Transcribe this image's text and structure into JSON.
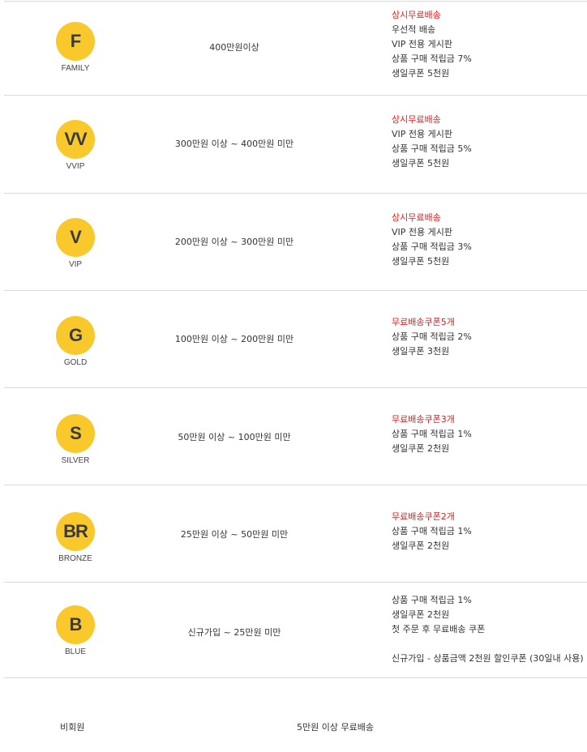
{
  "tiers": [
    {
      "badge": "F",
      "name": "FAMILY",
      "condition": "400만원이상",
      "highlight": "상시무료배송",
      "benefits": [
        "우선적 배송",
        "VIP 전용 게시판",
        "상품 구매 적립금 7%",
        "생일쿠폰 5천원"
      ],
      "note": ""
    },
    {
      "badge": "VV",
      "name": "VVIP",
      "condition": "300만원 이상 ~ 400만원 미만",
      "highlight": "상시무료배송",
      "benefits": [
        "VIP 전용 게시판",
        "상품 구매 적립금 5%",
        "생일쿠폰 5천원"
      ],
      "note": ""
    },
    {
      "badge": "V",
      "name": "VIP",
      "condition": "200만원 이상 ~ 300만원 미만",
      "highlight": "상시무료배송",
      "benefits": [
        "VIP 전용 게시판",
        "상품 구매 적립금 3%",
        "생일쿠폰 5천원"
      ],
      "note": ""
    },
    {
      "badge": "G",
      "name": "GOLD",
      "condition": "100만원 이상 ~ 200만원 미만",
      "highlight": "무료배송쿠폰5개",
      "benefits": [
        "상품 구매 적립금 2%",
        "생일쿠폰 3천원"
      ],
      "note": ""
    },
    {
      "badge": "S",
      "name": "SILVER",
      "condition": "50만원 이상 ~ 100만원 미만",
      "highlight": "무료배송쿠폰3개",
      "benefits": [
        "상품 구매 적립금 1%",
        "생일쿠폰 2천원"
      ],
      "note": ""
    },
    {
      "badge": "BR",
      "name": "BRONZE",
      "condition": "25만원 이상 ~ 50만원 미만",
      "highlight": "무료배송쿠폰2개",
      "benefits": [
        "상품 구매 적립금 1%",
        "생일쿠폰 2천원"
      ],
      "note": ""
    },
    {
      "badge": "B",
      "name": "BLUE",
      "condition": "신규가입 ~ 25만원 미만",
      "highlight": "",
      "benefits": [
        "상품 구매 적립금 1%",
        "생일쿠폰 2천원",
        "첫 주문 후 무료배송 쿠폰"
      ],
      "note": "신규가입 - 상품금액 2천원 할인쿠폰 (30일내 사용)"
    }
  ],
  "nonmember": {
    "label": "비회원",
    "benefit": "5만원 이상 무료배송"
  },
  "colors": {
    "badge": "#f9c82a",
    "highlight": "#e11b1b",
    "border": "#d9d9d9"
  }
}
